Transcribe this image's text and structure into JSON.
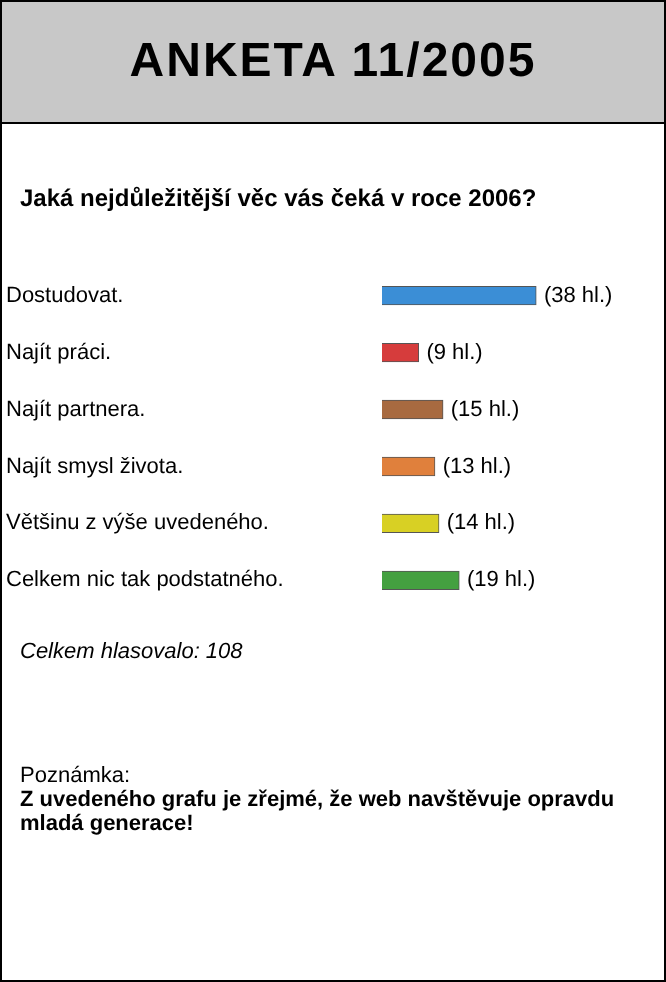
{
  "chart_data": {
    "type": "bar",
    "orientation": "horizontal",
    "title": "ANKETA 11/2005",
    "subtitle": "Jaká nejdůležitější věc vás čeká v roce 2006?",
    "categories": [
      "Dostudovat.",
      "Najít práci.",
      "Najít partnera.",
      "Najít smysl života.",
      "Většinu z výše uvedeného.",
      "Celkem nic tak podstatného."
    ],
    "values": [
      38,
      9,
      15,
      13,
      14,
      19
    ],
    "colors": [
      "#3b8ed6",
      "#d63c3c",
      "#a86a40",
      "#e0803c",
      "#d8d024",
      "#44a040"
    ],
    "value_labels": [
      "(38 hl.)",
      "(9 hl.)",
      "(15 hl.)",
      "(13 hl.)",
      "(14 hl.)",
      "(19 hl.)"
    ],
    "annotations": [
      "Celkem hlasovalo: 108",
      "Poznámka:",
      "Z uvedeného grafu je zřejmé, že web navštěvuje opravdu mladá generace!"
    ]
  }
}
